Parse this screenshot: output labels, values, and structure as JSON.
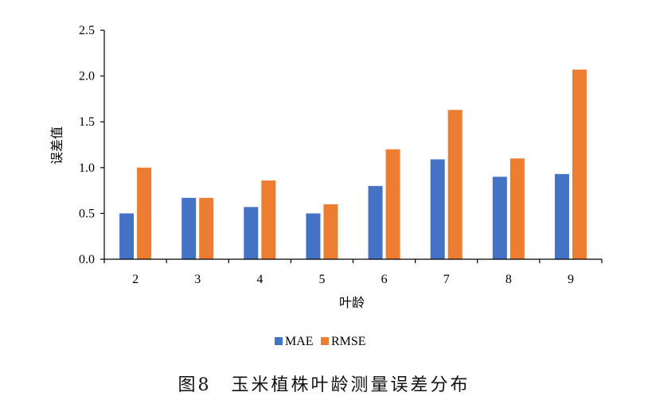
{
  "chart_data": {
    "type": "bar",
    "title": "",
    "xlabel": "叶龄",
    "ylabel": "误差值",
    "categories": [
      "2",
      "3",
      "4",
      "5",
      "6",
      "7",
      "8",
      "9"
    ],
    "series": [
      {
        "name": "MAE",
        "color": "#4472c4",
        "values": [
          0.5,
          0.67,
          0.57,
          0.5,
          0.8,
          1.09,
          0.9,
          0.93
        ]
      },
      {
        "name": "RMSE",
        "color": "#ed7d31",
        "values": [
          1.0,
          0.67,
          0.86,
          0.6,
          1.2,
          1.63,
          1.1,
          2.07
        ]
      }
    ],
    "ylim": [
      0,
      2.5
    ],
    "yticks": [
      "0.0",
      "0.5",
      "1.0",
      "1.5",
      "2.0",
      "2.5"
    ],
    "grid": false,
    "legend": "bottom-center"
  },
  "caption": "图8　玉米植株叶龄测量误差分布"
}
